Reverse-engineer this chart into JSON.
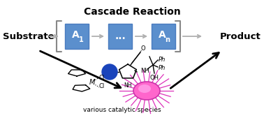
{
  "title": "Cascade Reaction",
  "title_fontsize": 10,
  "title_fontweight": "bold",
  "substrate_text": "Substrate",
  "product_text": "Product",
  "box_color": "#5b8fcd",
  "box_edge_color": "#4a7bbf",
  "catalytic_text": "various catalytic species",
  "catalytic_fontsize": 6.5,
  "bg_color": "#ffffff",
  "text_fontsize": 9.5,
  "text_fontweight": "bold",
  "gray_arrow_color": "#b0b0b0",
  "black_arrow_color": "#111111",
  "bracket_color": "#888888"
}
